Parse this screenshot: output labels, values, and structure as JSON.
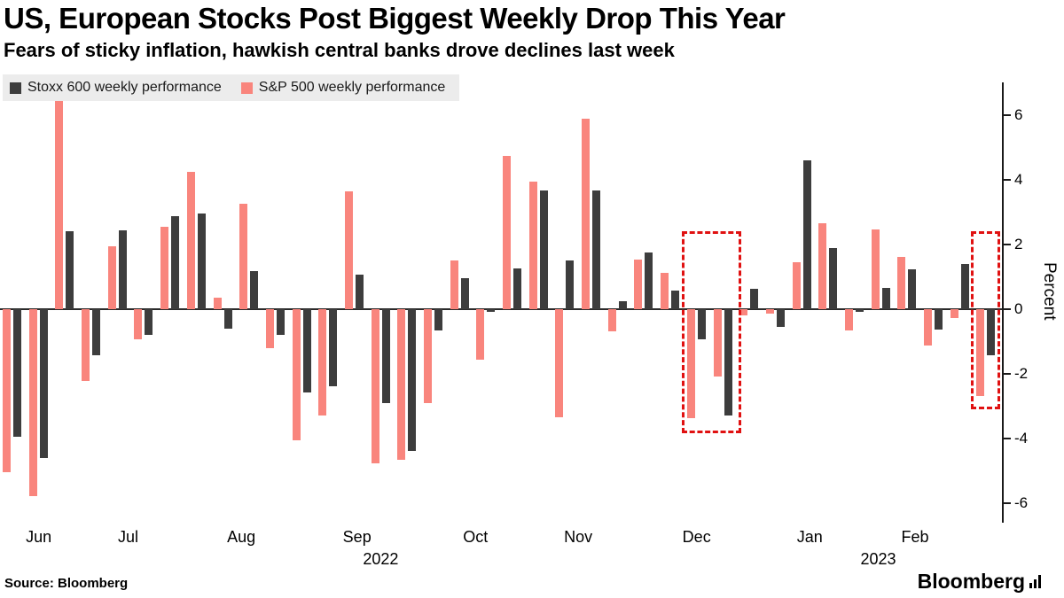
{
  "header": {
    "title": "US, European Stocks Post Biggest Weekly Drop This Year",
    "subtitle": "Fears of sticky inflation, hawkish central banks drove declines last week"
  },
  "legend": {
    "items": [
      {
        "label": "Stoxx 600 weekly performance",
        "color": "#3d3d3d"
      },
      {
        "label": "S&P 500 weekly performance",
        "color": "#f9857d"
      }
    ]
  },
  "chart_data": {
    "type": "bar",
    "title": "US, European Stocks Post Biggest Weekly Drop This Year",
    "subtitle": "Fears of sticky inflation, hawkish central banks drove declines last week",
    "xlabel": "",
    "ylabel": "Percent",
    "ylim": [
      -6.6,
      6.9
    ],
    "yticks": [
      6,
      4,
      2,
      0,
      -2,
      -4,
      -6
    ],
    "grid": false,
    "legend_position": "top-left",
    "x_unit": "weekly bars, Jun 2022 - Feb 2023",
    "weeks_count": 38,
    "series": [
      {
        "name": "S&P 500 weekly performance",
        "slug": "sp500",
        "color": "#f9857d",
        "slot": 0,
        "values": [
          -5.05,
          -5.79,
          6.45,
          -2.21,
          1.94,
          -0.93,
          2.55,
          4.26,
          0.36,
          3.26,
          -1.21,
          -4.04,
          -3.29,
          3.65,
          -4.77,
          -4.65,
          -2.91,
          1.51,
          -1.55,
          4.74,
          3.95,
          -3.35,
          5.9,
          -0.69,
          1.53,
          1.13,
          -3.37,
          -2.08,
          -0.2,
          -0.14,
          1.45,
          2.67,
          -0.66,
          2.47,
          1.62,
          -1.11,
          -0.28,
          -2.67
        ]
      },
      {
        "name": "Stoxx 600 weekly performance",
        "slug": "stoxx600",
        "color": "#3d3d3d",
        "slot": 1,
        "values": [
          -3.95,
          -4.6,
          2.4,
          -1.42,
          2.45,
          -0.8,
          2.88,
          2.96,
          -0.59,
          1.18,
          -0.8,
          -2.58,
          -2.38,
          1.06,
          -2.89,
          -4.37,
          -0.65,
          0.97,
          -0.09,
          1.27,
          3.68,
          1.51,
          3.66,
          0.25,
          1.76,
          0.58,
          -0.94,
          -3.28,
          0.64,
          -0.55,
          4.6,
          1.88,
          -0.09,
          0.67,
          1.23,
          -0.62,
          1.4,
          -1.42
        ]
      }
    ],
    "month_ticks": [
      {
        "label": "Jun",
        "week": 1.4
      },
      {
        "label": "Jul",
        "week": 4.8
      },
      {
        "label": "Aug",
        "week": 9.1
      },
      {
        "label": "Sep",
        "week": 13.5
      },
      {
        "label": "Oct",
        "week": 18.0
      },
      {
        "label": "Nov",
        "week": 21.9
      },
      {
        "label": "Dec",
        "week": 26.4
      },
      {
        "label": "Jan",
        "week": 30.7
      },
      {
        "label": "Feb",
        "week": 34.7
      }
    ],
    "year_ticks": [
      {
        "label": "2022",
        "week": 14.4
      },
      {
        "label": "2023",
        "week": 33.3
      }
    ],
    "highlight_boxes": [
      {
        "week_start": 25.85,
        "week_end": 28.1,
        "value_top": 2.4,
        "value_bottom": -3.85,
        "color": "#e01111"
      },
      {
        "week_start": 36.83,
        "week_end": 37.92,
        "value_top": 2.4,
        "value_bottom": -3.1,
        "color": "#e01111"
      }
    ]
  },
  "footer": {
    "source": "Source: Bloomberg",
    "brand": "Bloomberg"
  }
}
